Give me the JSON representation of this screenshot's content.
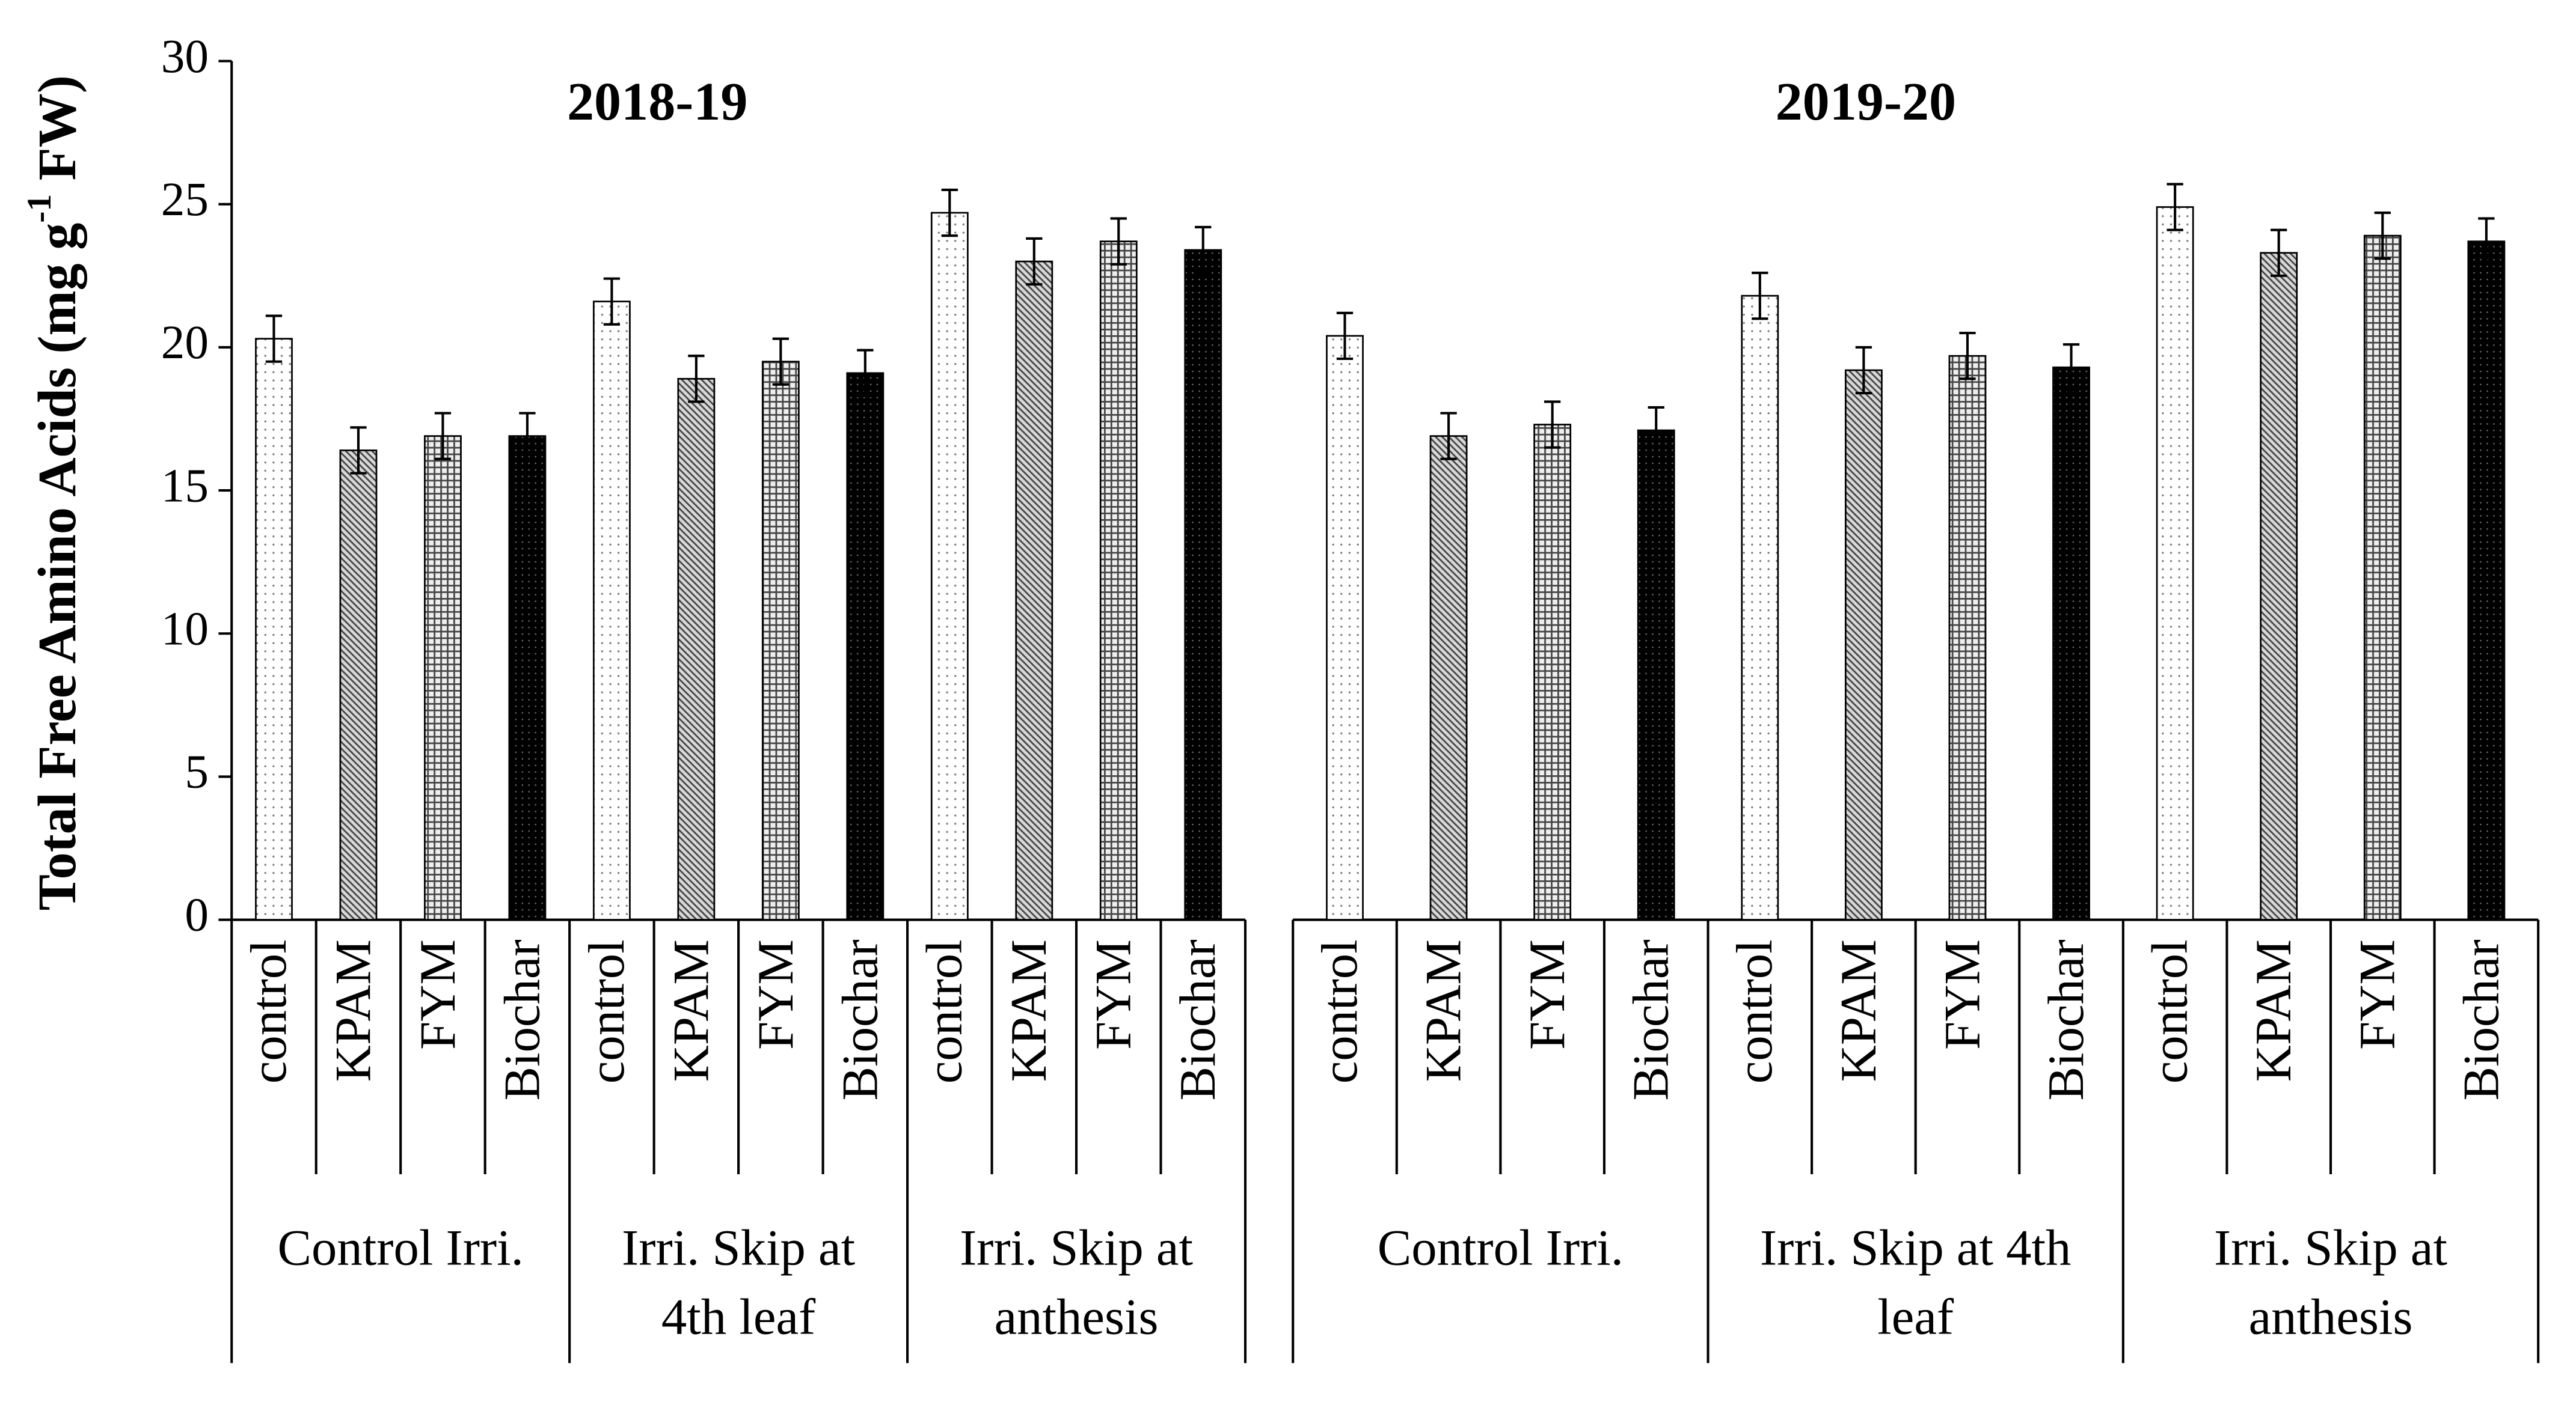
{
  "chart_data": {
    "type": "bar",
    "ylabel": [
      "Total Free Amino Acids (mg g",
      "-1",
      " FW)"
    ],
    "ylim": [
      0,
      30
    ],
    "yticks": [
      0,
      5,
      10,
      15,
      20,
      25,
      30
    ],
    "panels": [
      {
        "title": "2018-19",
        "groups": [
          {
            "name": [
              "Control Irri."
            ],
            "categories": [
              "control",
              "KPAM",
              "FYM",
              "Biochar"
            ],
            "values": [
              20.3,
              16.4,
              16.9,
              16.9
            ],
            "errors": [
              0.8,
              0.8,
              0.8,
              0.8
            ]
          },
          {
            "name": [
              "Irri. Skip at",
              "4th leaf"
            ],
            "categories": [
              "control",
              "KPAM",
              "FYM",
              "Biochar"
            ],
            "values": [
              21.6,
              18.9,
              19.5,
              19.1
            ],
            "errors": [
              0.8,
              0.8,
              0.8,
              0.8
            ]
          },
          {
            "name": [
              "Irri. Skip at",
              "anthesis"
            ],
            "categories": [
              "control",
              "KPAM",
              "FYM",
              "Biochar"
            ],
            "values": [
              24.7,
              23.0,
              23.7,
              23.4
            ],
            "errors": [
              0.8,
              0.8,
              0.8,
              0.8
            ]
          }
        ]
      },
      {
        "title": "2019-20",
        "groups": [
          {
            "name": [
              "Control Irri."
            ],
            "categories": [
              "control",
              "KPAM",
              "FYM",
              "Biochar"
            ],
            "values": [
              20.4,
              16.9,
              17.3,
              17.1
            ],
            "errors": [
              0.8,
              0.8,
              0.8,
              0.8
            ]
          },
          {
            "name": [
              "Irri. Skip at 4th",
              "leaf"
            ],
            "categories": [
              "control",
              "KPAM",
              "FYM",
              "Biochar"
            ],
            "values": [
              21.8,
              19.2,
              19.7,
              19.3
            ],
            "errors": [
              0.8,
              0.8,
              0.8,
              0.8
            ]
          },
          {
            "name": [
              "Irri. Skip at",
              "anthesis"
            ],
            "categories": [
              "control",
              "KPAM",
              "FYM",
              "Biochar"
            ],
            "values": [
              24.9,
              23.3,
              23.9,
              23.7
            ],
            "errors": [
              0.8,
              0.8,
              0.8,
              0.8
            ]
          }
        ]
      }
    ]
  }
}
